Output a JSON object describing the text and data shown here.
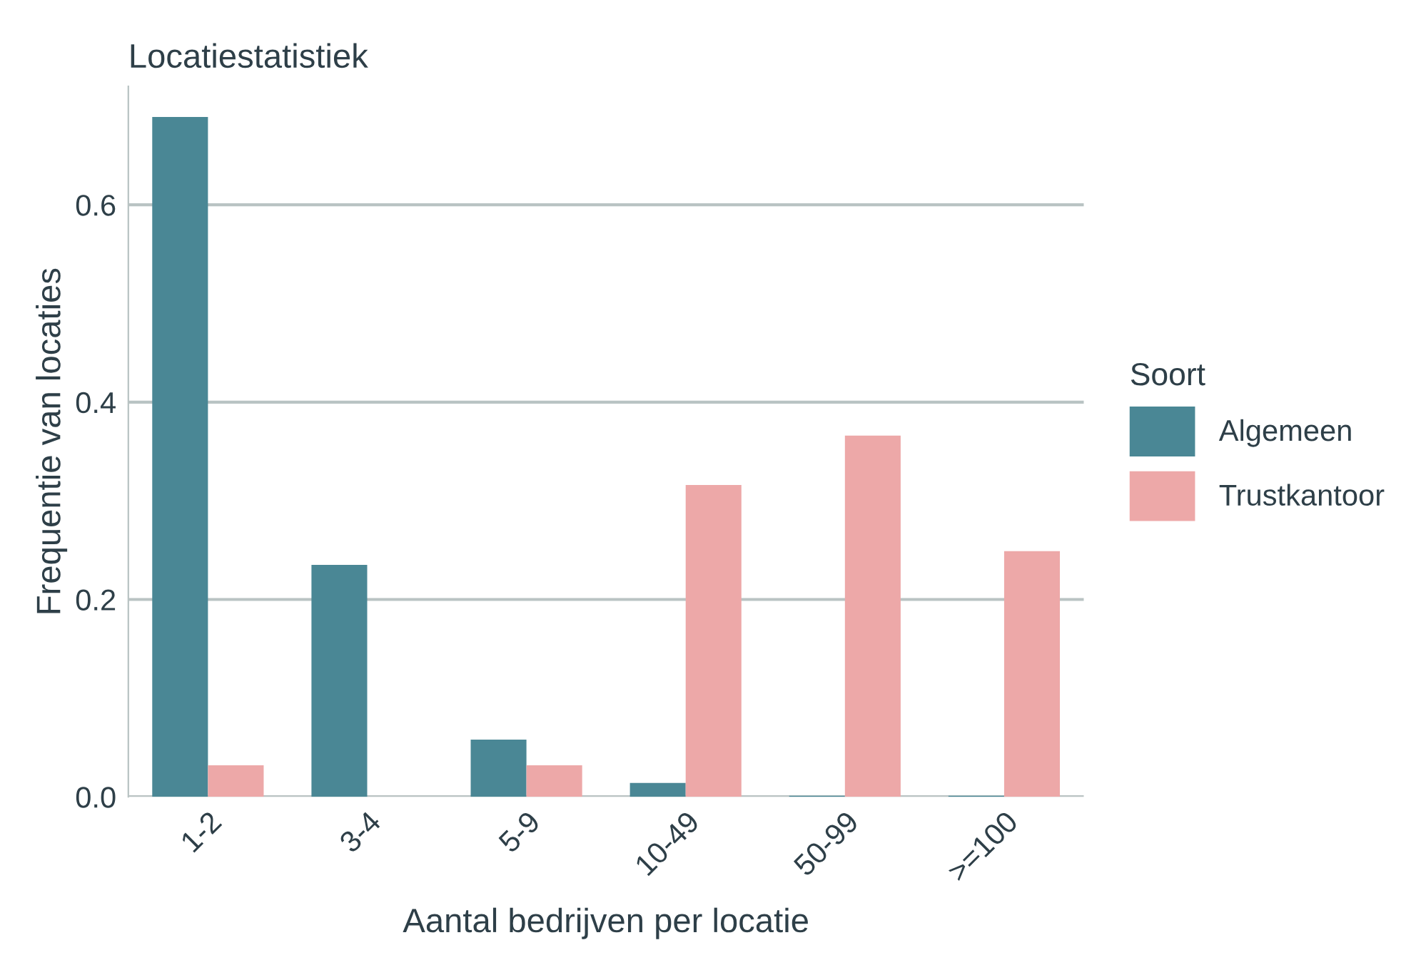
{
  "chart_data": {
    "type": "bar",
    "title": "Locatiestatistiek",
    "xlabel": "Aantal bedrijven per locatie",
    "ylabel": "Frequentie van locaties",
    "legend_title": "Soort",
    "categories": [
      "1-2",
      "3-4",
      "5-9",
      "10-49",
      "50-99",
      ">=100"
    ],
    "series": [
      {
        "name": "Algemeen",
        "color": "#4a8795",
        "values": [
          0.689,
          0.235,
          0.058,
          0.014,
          0.001,
          0.001
        ]
      },
      {
        "name": "Trustkantoor",
        "color": "#eda8a8",
        "values": [
          0.032,
          0,
          0.032,
          0.316,
          0.366,
          0.249
        ]
      }
    ],
    "ylim": [
      0,
      0.72
    ],
    "yticks": [
      {
        "value": 0,
        "label": "0.0"
      },
      {
        "value": 0.2,
        "label": "0.2"
      },
      {
        "value": 0.4,
        "label": "0.4"
      },
      {
        "value": 0.6,
        "label": "0.6"
      }
    ],
    "grid": "y",
    "legend": "right"
  }
}
